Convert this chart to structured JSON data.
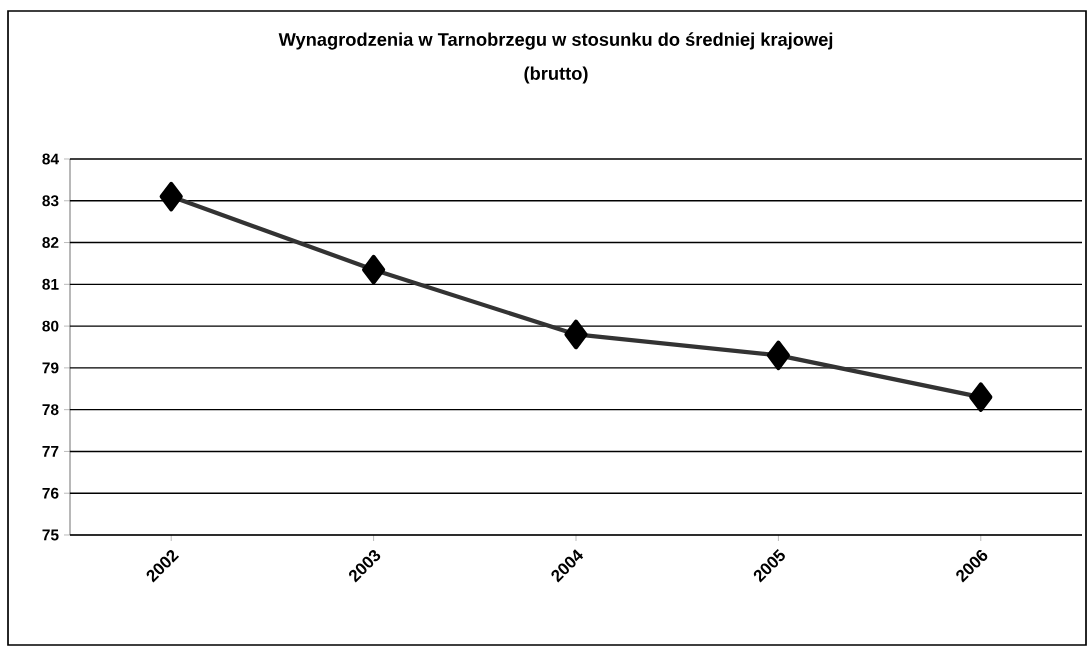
{
  "chart_data": {
    "type": "line",
    "title": "Wynagrodzenia w Tarnobrzegu w stosunku do średniej krajowej",
    "subtitle": "(brutto)",
    "categories": [
      "2002",
      "2003",
      "2004",
      "2005",
      "2006"
    ],
    "values": [
      83.1,
      81.35,
      79.8,
      79.3,
      78.3
    ],
    "color": "#333333",
    "marker": "diamond",
    "line_style": "solid",
    "ylim": [
      75,
      84
    ],
    "yticks": [
      75,
      76,
      77,
      78,
      79,
      80,
      81,
      82,
      83,
      84
    ],
    "grid": "y"
  }
}
